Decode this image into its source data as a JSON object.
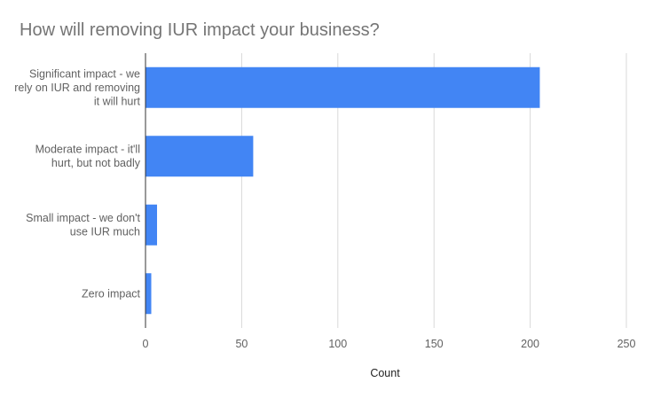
{
  "chart_data": {
    "type": "bar",
    "orientation": "horizontal",
    "title": "How will removing IUR impact your business?",
    "xlabel": "Count",
    "ylabel": "",
    "categories": [
      [
        "Significant impact - we",
        "rely on IUR and removing",
        "it will hurt"
      ],
      [
        "Moderate impact - it'll",
        "hurt, but not badly"
      ],
      [
        "Small impact - we don't",
        "use IUR much"
      ],
      [
        "Zero impact"
      ]
    ],
    "values": [
      205,
      56,
      6,
      3
    ],
    "xlim": [
      0,
      250
    ],
    "x_ticks": [
      "0",
      "50",
      "100",
      "150",
      "200",
      "250"
    ],
    "grid": true,
    "legend": "none",
    "bar_color": "#4285f4"
  }
}
